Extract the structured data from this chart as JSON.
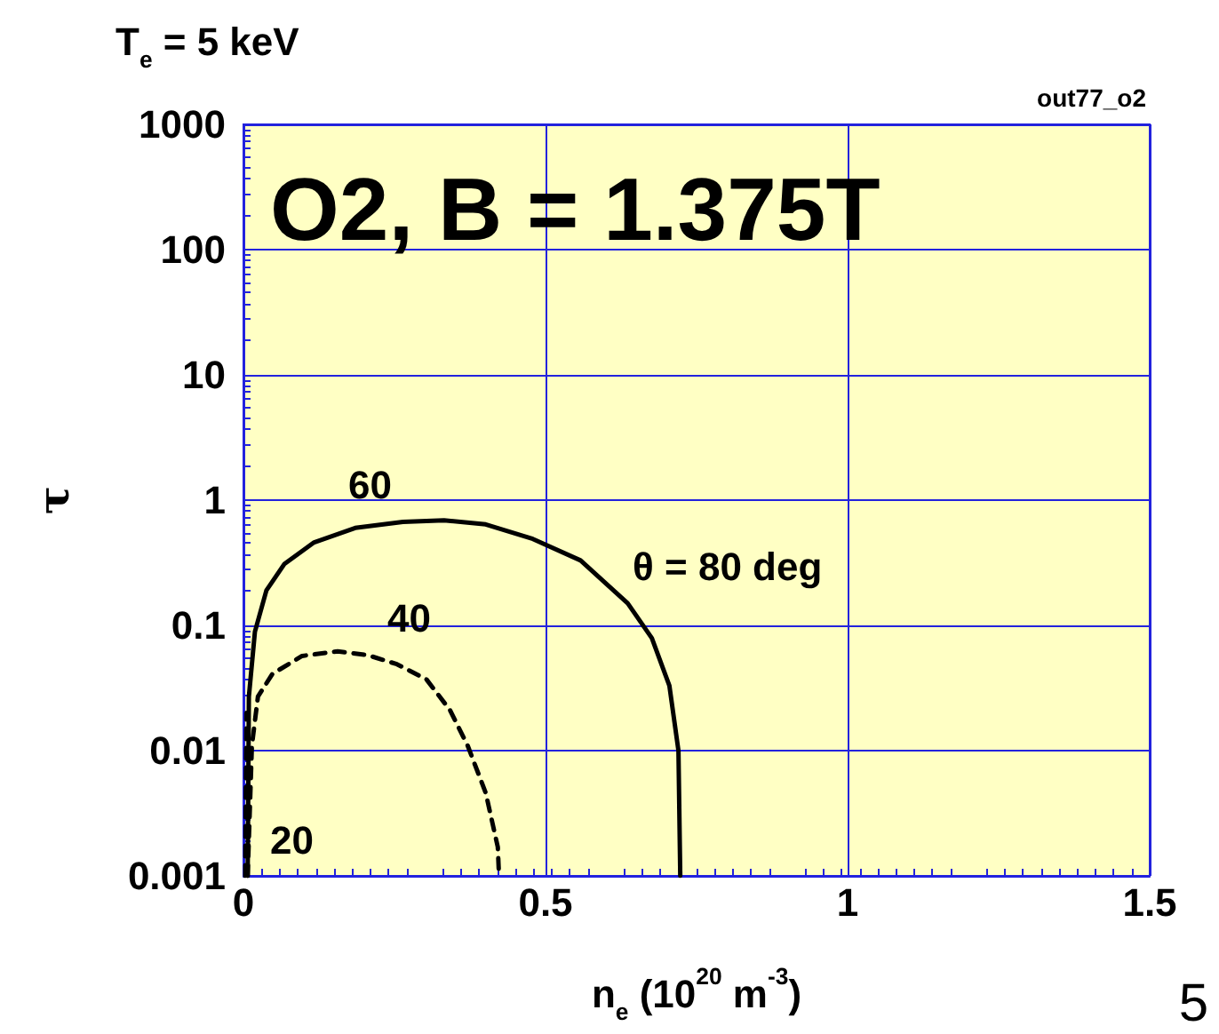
{
  "chart_data": {
    "type": "line",
    "title": "O2, B = 1.375T",
    "subtitle": "T$_{e}$ = 5 keV",
    "xlabel": "n$_{e}$ (10$^{20}$ m$^{-3}$)",
    "ylabel": "τ",
    "log": "y",
    "grid": true,
    "marker": "none",
    "xlim": [
      0,
      1.5
    ],
    "xticks": [
      0,
      0.5,
      1,
      1.5
    ],
    "ylim": [
      0.001,
      1000
    ],
    "yticks": [
      0.001,
      0.01,
      0.1,
      1,
      10,
      100,
      1000
    ],
    "series": [
      {
        "color": "#000000",
        "line_style": "solid",
        "x": [
          0.007,
          0.009,
          0.019,
          0.038,
          0.068,
          0.117,
          0.185,
          0.264,
          0.332,
          0.401,
          0.479,
          0.558,
          0.636,
          0.676,
          0.705,
          0.72,
          0.723
        ],
        "values": [
          0.001,
          0.027,
          0.089,
          0.19,
          0.31,
          0.46,
          0.6,
          0.67,
          0.69,
          0.64,
          0.49,
          0.33,
          0.15,
          0.079,
          0.033,
          0.01,
          0.001
        ]
      },
      {
        "color": "#000000",
        "line_style": "dashed",
        "x": [
          0.007,
          0.014,
          0.024,
          0.048,
          0.097,
          0.156,
          0.205,
          0.254,
          0.303,
          0.342,
          0.371,
          0.401,
          0.421,
          0.423
        ],
        "values": [
          0.001,
          0.011,
          0.027,
          0.041,
          0.057,
          0.062,
          0.058,
          0.049,
          0.037,
          0.021,
          0.011,
          0.0046,
          0.0017,
          0.001
        ]
      },
      {
        "color": "#000000",
        "line_style": "dashed",
        "x": [
          0.003,
          0.004,
          0.005
        ],
        "values": [
          0.001,
          0.005,
          0.02
        ]
      }
    ],
    "annotations": [
      "60",
      "θ = 80 deg",
      "40",
      "20",
      "out77_o2",
      "5"
    ]
  }
}
